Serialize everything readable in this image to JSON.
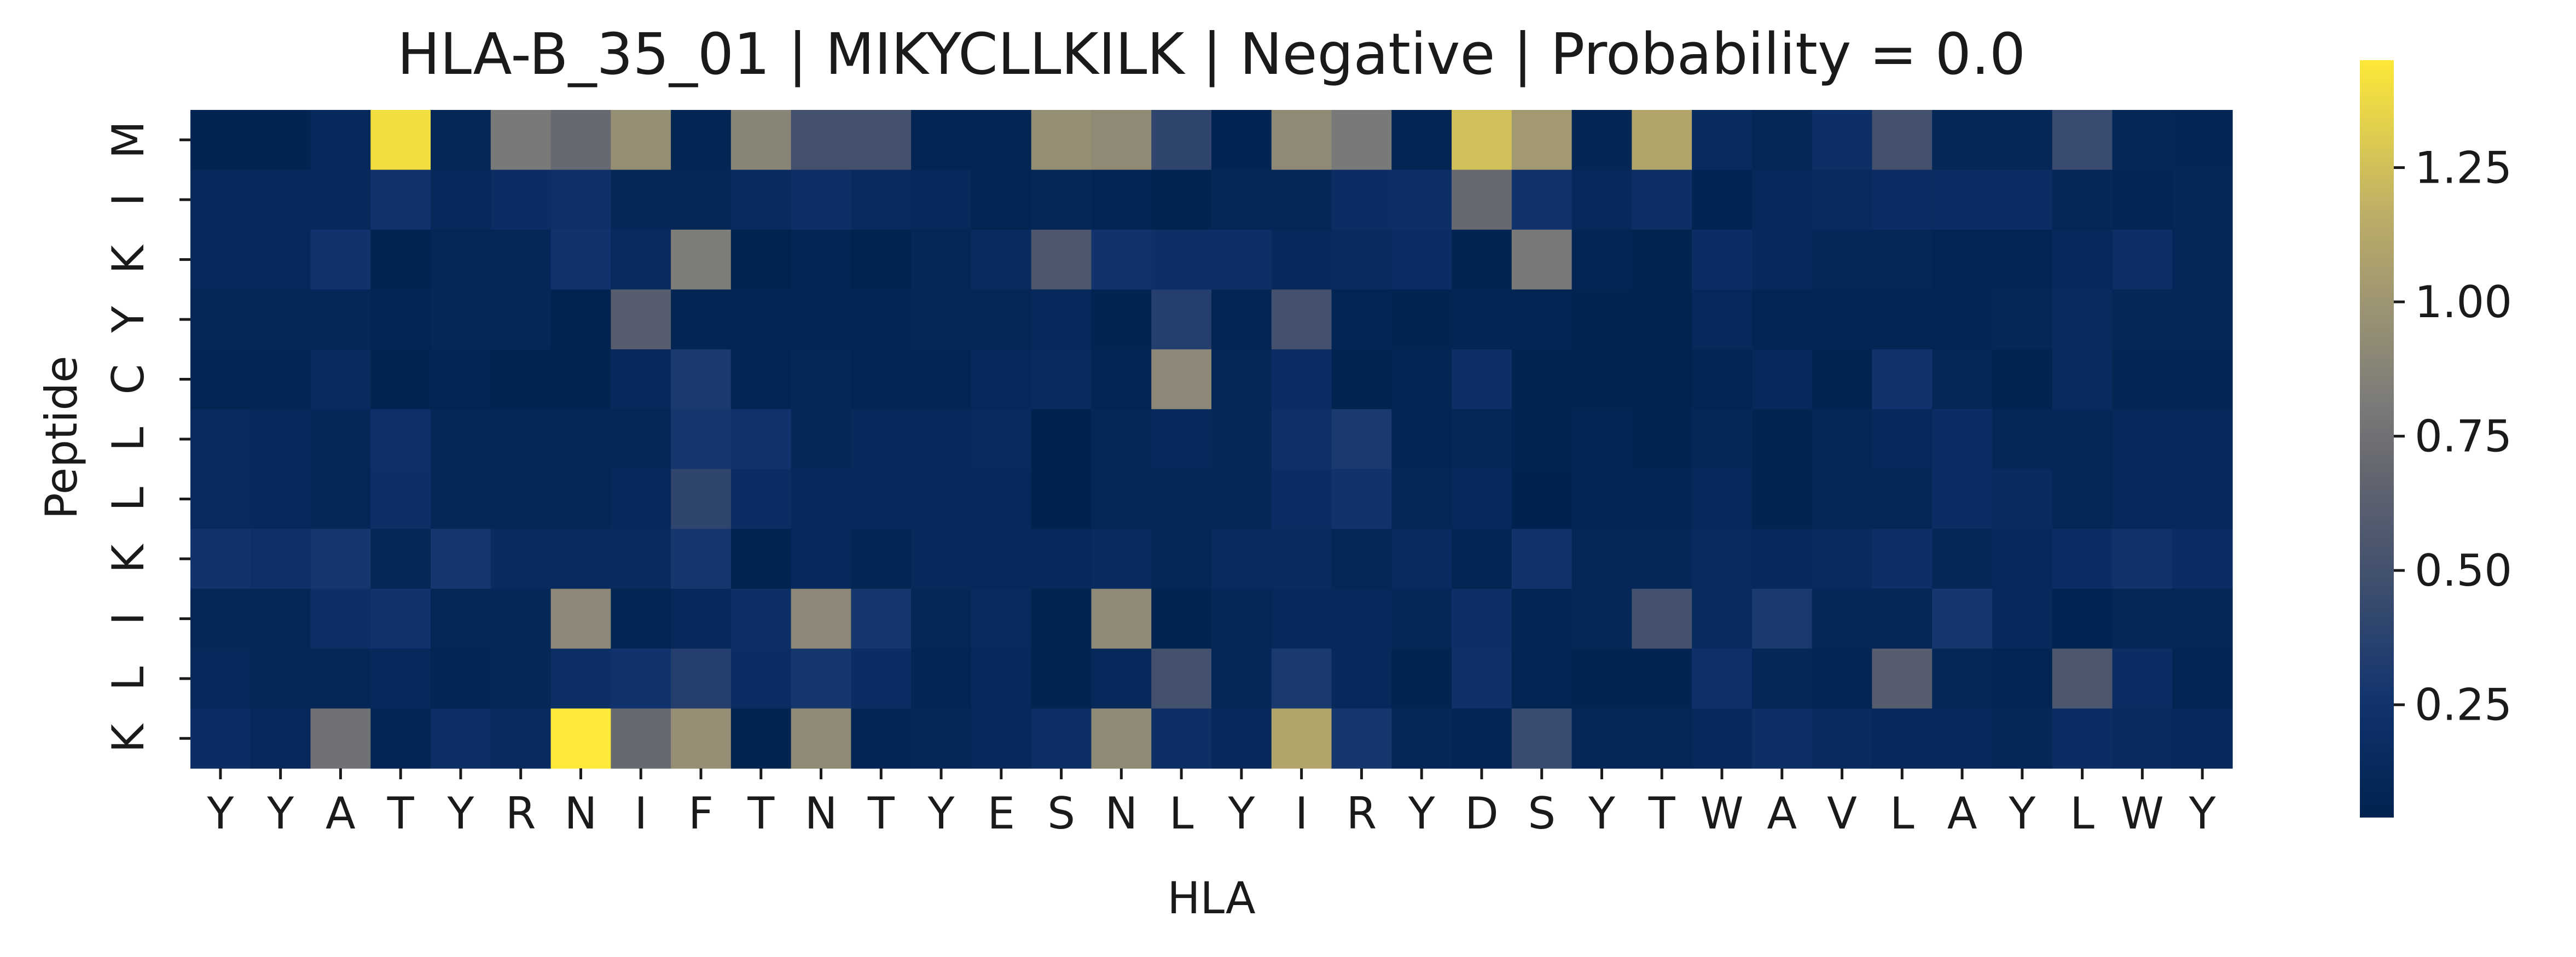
{
  "chart_data": {
    "type": "heatmap",
    "title": "HLA-B_35_01 | MIKYCLLKILK | Negative | Probability = 0.0",
    "xlabel": "HLA",
    "ylabel": "Peptide",
    "x_categories": [
      "Y",
      "Y",
      "A",
      "T",
      "Y",
      "R",
      "N",
      "I",
      "F",
      "T",
      "N",
      "T",
      "Y",
      "E",
      "S",
      "N",
      "L",
      "Y",
      "I",
      "R",
      "Y",
      "D",
      "S",
      "Y",
      "T",
      "W",
      "A",
      "V",
      "L",
      "A",
      "Y",
      "L",
      "W",
      "Y"
    ],
    "y_categories": [
      "M",
      "I",
      "K",
      "Y",
      "C",
      "L",
      "L",
      "K",
      "I",
      "L",
      "K"
    ],
    "colormap": "cividis",
    "color_range": [
      0.04,
      1.45
    ],
    "colorbar_ticks": [
      0.25,
      0.5,
      0.75,
      1.0,
      1.25
    ],
    "colorbar_tick_labels": [
      "0.25",
      "0.50",
      "0.75",
      "1.00",
      "1.25"
    ],
    "grid": false,
    "values": [
      [
        0.06,
        0.06,
        0.12,
        1.4,
        0.1,
        0.8,
        0.7,
        0.95,
        0.08,
        0.88,
        0.5,
        0.5,
        0.08,
        0.08,
        0.95,
        0.92,
        0.4,
        0.07,
        0.92,
        0.8,
        0.08,
        1.25,
        1.02,
        0.09,
        1.1,
        0.15,
        0.1,
        0.2,
        0.5,
        0.1,
        0.1,
        0.45,
        0.1,
        0.09
      ],
      [
        0.12,
        0.12,
        0.12,
        0.25,
        0.12,
        0.18,
        0.22,
        0.1,
        0.1,
        0.15,
        0.2,
        0.15,
        0.12,
        0.08,
        0.1,
        0.08,
        0.06,
        0.1,
        0.1,
        0.18,
        0.2,
        0.7,
        0.25,
        0.12,
        0.2,
        0.07,
        0.12,
        0.15,
        0.18,
        0.18,
        0.18,
        0.1,
        0.08,
        0.1
      ],
      [
        0.12,
        0.12,
        0.25,
        0.06,
        0.1,
        0.1,
        0.25,
        0.15,
        0.82,
        0.05,
        0.08,
        0.05,
        0.1,
        0.15,
        0.55,
        0.25,
        0.2,
        0.2,
        0.12,
        0.15,
        0.18,
        0.06,
        0.8,
        0.08,
        0.06,
        0.18,
        0.12,
        0.1,
        0.1,
        0.08,
        0.08,
        0.12,
        0.2,
        0.1
      ],
      [
        0.1,
        0.1,
        0.1,
        0.08,
        0.1,
        0.1,
        0.05,
        0.6,
        0.08,
        0.08,
        0.08,
        0.08,
        0.1,
        0.1,
        0.12,
        0.06,
        0.35,
        0.08,
        0.5,
        0.08,
        0.06,
        0.08,
        0.08,
        0.06,
        0.05,
        0.12,
        0.08,
        0.08,
        0.08,
        0.08,
        0.1,
        0.14,
        0.1,
        0.1
      ],
      [
        0.08,
        0.08,
        0.15,
        0.06,
        0.08,
        0.06,
        0.06,
        0.12,
        0.3,
        0.08,
        0.1,
        0.08,
        0.08,
        0.12,
        0.15,
        0.08,
        0.9,
        0.1,
        0.18,
        0.06,
        0.08,
        0.2,
        0.06,
        0.06,
        0.05,
        0.08,
        0.12,
        0.05,
        0.25,
        0.1,
        0.05,
        0.15,
        0.08,
        0.08
      ],
      [
        0.15,
        0.12,
        0.1,
        0.22,
        0.1,
        0.1,
        0.1,
        0.1,
        0.28,
        0.25,
        0.1,
        0.12,
        0.12,
        0.15,
        0.04,
        0.1,
        0.12,
        0.1,
        0.22,
        0.3,
        0.08,
        0.1,
        0.05,
        0.08,
        0.06,
        0.1,
        0.06,
        0.1,
        0.12,
        0.18,
        0.1,
        0.1,
        0.12,
        0.12
      ],
      [
        0.15,
        0.12,
        0.1,
        0.2,
        0.1,
        0.1,
        0.1,
        0.12,
        0.4,
        0.18,
        0.12,
        0.12,
        0.12,
        0.12,
        0.04,
        0.1,
        0.1,
        0.1,
        0.18,
        0.25,
        0.1,
        0.12,
        0.04,
        0.08,
        0.08,
        0.12,
        0.06,
        0.1,
        0.1,
        0.18,
        0.15,
        0.1,
        0.12,
        0.12
      ],
      [
        0.25,
        0.22,
        0.28,
        0.1,
        0.28,
        0.15,
        0.15,
        0.15,
        0.28,
        0.05,
        0.12,
        0.08,
        0.12,
        0.12,
        0.12,
        0.15,
        0.1,
        0.15,
        0.15,
        0.1,
        0.15,
        0.08,
        0.25,
        0.1,
        0.1,
        0.15,
        0.12,
        0.15,
        0.2,
        0.1,
        0.12,
        0.18,
        0.25,
        0.18
      ],
      [
        0.1,
        0.1,
        0.2,
        0.25,
        0.1,
        0.1,
        0.9,
        0.08,
        0.12,
        0.2,
        0.9,
        0.28,
        0.1,
        0.15,
        0.05,
        0.92,
        0.06,
        0.1,
        0.12,
        0.12,
        0.1,
        0.2,
        0.08,
        0.1,
        0.5,
        0.15,
        0.3,
        0.1,
        0.1,
        0.28,
        0.12,
        0.07,
        0.1,
        0.1
      ],
      [
        0.12,
        0.1,
        0.1,
        0.12,
        0.08,
        0.1,
        0.2,
        0.25,
        0.35,
        0.18,
        0.28,
        0.18,
        0.08,
        0.12,
        0.06,
        0.12,
        0.5,
        0.1,
        0.3,
        0.12,
        0.06,
        0.22,
        0.08,
        0.06,
        0.06,
        0.22,
        0.1,
        0.08,
        0.6,
        0.1,
        0.08,
        0.55,
        0.18,
        0.08
      ],
      [
        0.18,
        0.12,
        0.75,
        0.08,
        0.2,
        0.15,
        1.45,
        0.7,
        0.95,
        0.06,
        0.92,
        0.08,
        0.1,
        0.12,
        0.2,
        0.92,
        0.2,
        0.12,
        1.1,
        0.28,
        0.1,
        0.08,
        0.45,
        0.1,
        0.1,
        0.12,
        0.2,
        0.15,
        0.12,
        0.12,
        0.1,
        0.18,
        0.15,
        0.12
      ]
    ]
  }
}
